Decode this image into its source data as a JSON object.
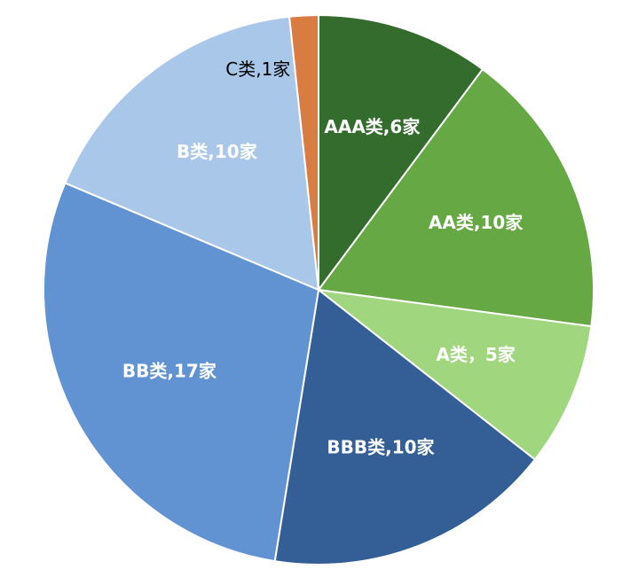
{
  "chart_data": {
    "type": "pie",
    "values": [
      6,
      10,
      5,
      10,
      17,
      10,
      1
    ],
    "value_labels": [
      "AAA类,6家",
      "AA类,10家",
      "A类，5家",
      "BBB类,10家",
      "BB类,17家",
      "B类,10家",
      "C类,1家"
    ],
    "colors": [
      "#346c2e",
      "#66a844",
      "#9fd67e",
      "#335f96",
      "#6193d3",
      "#a9c7e8",
      "#d87c42"
    ],
    "label_colors": [
      "#ffffff",
      "#ffffff",
      "#ffffff",
      "#ffffff",
      "#ffffff",
      "#ffffff",
      "#000000"
    ]
  }
}
